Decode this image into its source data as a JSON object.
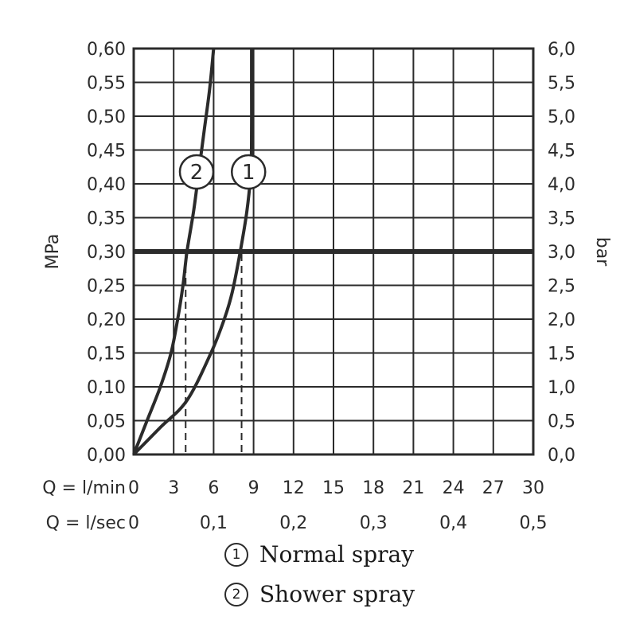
{
  "chart_data": {
    "type": "line",
    "title": "",
    "xlabel_lmin": "Q = l/min",
    "xlabel_lsec": "Q = l/sec",
    "ylabel_left": "MPa",
    "ylabel_right": "bar",
    "xlim": [
      0,
      30
    ],
    "ylim": [
      0,
      0.6
    ],
    "grid": true,
    "x_ticks": [
      "0",
      "3",
      "6",
      "9",
      "12",
      "15",
      "18",
      "21",
      "24",
      "27",
      "30"
    ],
    "x2_ticks": [
      "0",
      "0,1",
      "0,2",
      "0,3",
      "0,4",
      "0,5"
    ],
    "y_left_ticks": [
      "0,00",
      "0,05",
      "0,10",
      "0,15",
      "0,20",
      "0,25",
      "0,30",
      "0,35",
      "0,40",
      "0,45",
      "0,50",
      "0,55",
      "0,60"
    ],
    "y_right_ticks": [
      "0,0",
      "0,5",
      "1,0",
      "1,5",
      "2,0",
      "2,5",
      "3,0",
      "3,5",
      "4,0",
      "4,5",
      "5,0",
      "5,5",
      "6,0"
    ],
    "reference_line": {
      "y": 0.3
    },
    "series": [
      {
        "name": "Normal spray",
        "marker": "1",
        "points": [
          [
            0,
            0
          ],
          [
            2,
            0.04
          ],
          [
            4,
            0.08
          ],
          [
            5.8,
            0.15
          ],
          [
            6.8,
            0.2
          ],
          [
            7.4,
            0.24
          ],
          [
            8.0,
            0.3
          ],
          [
            8.5,
            0.36
          ],
          [
            8.8,
            0.42
          ],
          [
            8.85,
            0.48
          ],
          [
            8.85,
            0.54
          ],
          [
            8.85,
            0.6
          ]
        ],
        "drop_x": 8.1
      },
      {
        "name": "Shower spray",
        "marker": "2",
        "points": [
          [
            0,
            0
          ],
          [
            1.0,
            0.05
          ],
          [
            2.0,
            0.1
          ],
          [
            2.8,
            0.15
          ],
          [
            3.3,
            0.2
          ],
          [
            3.7,
            0.25
          ],
          [
            4.0,
            0.3
          ],
          [
            4.5,
            0.36
          ],
          [
            4.9,
            0.42
          ],
          [
            5.3,
            0.48
          ],
          [
            5.7,
            0.54
          ],
          [
            6.0,
            0.6
          ]
        ],
        "drop_x": 3.9
      }
    ]
  },
  "legend": {
    "items": [
      {
        "marker": "1",
        "label": "Normal spray"
      },
      {
        "marker": "2",
        "label": "Shower spray"
      }
    ]
  }
}
